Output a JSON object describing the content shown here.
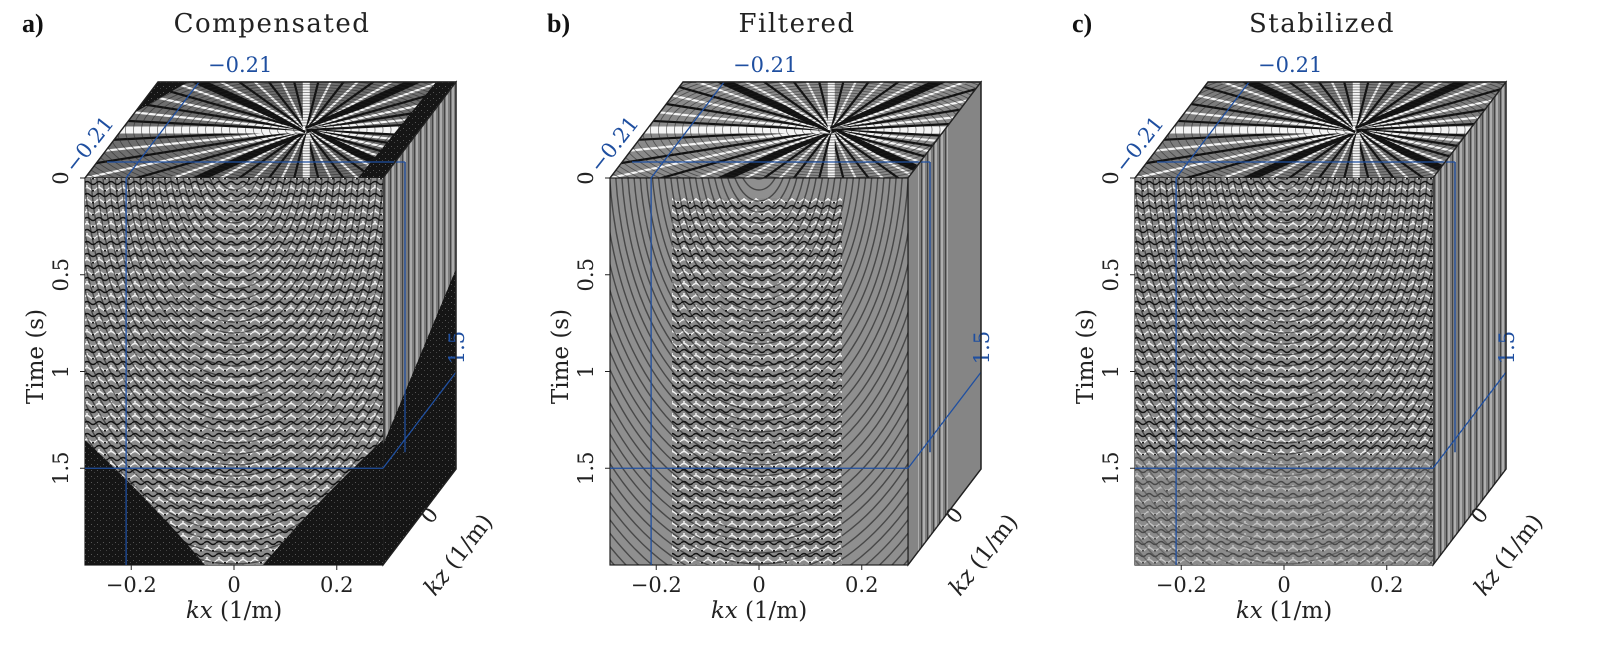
{
  "panels": [
    {
      "label": "a)",
      "title": "Compensated",
      "variant": "compensated",
      "colors": {
        "front": "#8a8a8a",
        "top": "#6e6e6e",
        "side": "#7a7a7a",
        "corner_fill": "#161616"
      }
    },
    {
      "label": "b)",
      "title": "Filtered",
      "variant": "filtered",
      "colors": {
        "front": "#8f8f8f",
        "top": "#8a8a8a",
        "side": "#858585",
        "corner_fill": "#8f8f8f"
      }
    },
    {
      "label": "c)",
      "title": "Stabilized",
      "variant": "stabilized",
      "colors": {
        "front": "#8c8c8c",
        "top": "#7c7c7c",
        "side": "#838383",
        "corner_fill": "#8c8c8c"
      }
    }
  ],
  "axes": {
    "time_label": "Time (s)",
    "time_ticks": [
      "0",
      "0.5",
      "1",
      "1.5"
    ],
    "time_range": [
      0,
      2.0
    ],
    "kx_var": "kx",
    "kx_unit": " (1/m)",
    "kx_ticks": [
      "-0.2",
      "0",
      "0.2"
    ],
    "kx_range": [
      -0.29,
      0.29
    ],
    "kz_var": "kz",
    "kz_unit": " (1/m)",
    "kz_tick": "0"
  },
  "annotations": {
    "top_value": "−0.21",
    "diag_value": "−0.21",
    "side_value": "1.5"
  },
  "style": {
    "slice_line_color": "#1f4fa0",
    "edge_color": "#222222",
    "pattern_dark": "#111111",
    "pattern_light": "#f4f4f4"
  }
}
